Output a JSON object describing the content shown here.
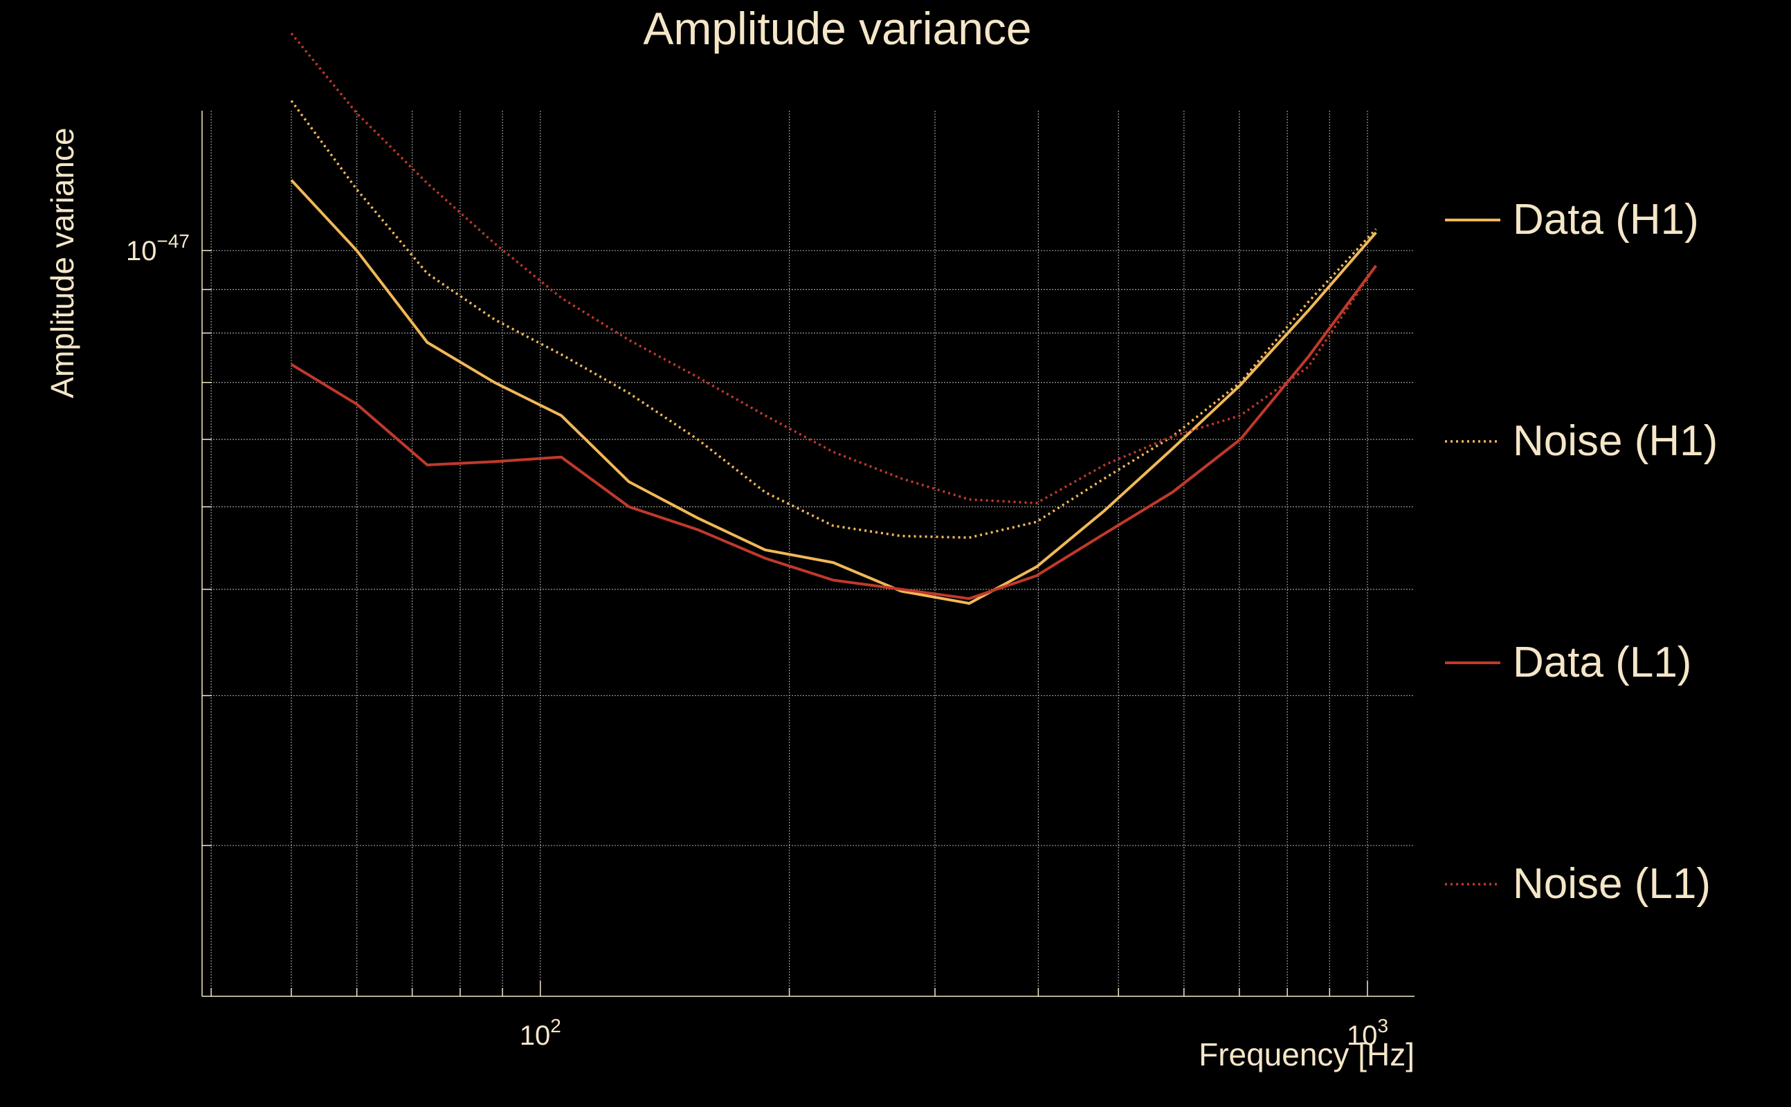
{
  "chart_data": {
    "type": "line",
    "title": "Amplitude variance",
    "xlabel": "Frequency [Hz]",
    "ylabel": "Amplitude variance",
    "x_scale": "log",
    "y_scale": "log",
    "xlim": [
      39,
      1140
    ],
    "ylim": [
      1.33e-48,
      1.46e-47
    ],
    "x_ticks": [
      {
        "value": 100,
        "base": "10",
        "exp": "2"
      },
      {
        "value": 1000,
        "base": "10",
        "exp": "3"
      }
    ],
    "y_ticks": [
      {
        "value": 1e-47,
        "base": "10",
        "exp": "−47"
      }
    ],
    "grid": true,
    "legend_position": "right",
    "colors": {
      "background": "#000000",
      "text": "#f5e6c8",
      "grid": "#9a9a9a",
      "h1": "#f0b858",
      "l1": "#c0392b"
    },
    "x": [
      50,
      60,
      73,
      88,
      106,
      128,
      155,
      187,
      226,
      273,
      330,
      398,
      481,
      581,
      702,
      848,
      1024
    ],
    "series": [
      {
        "name": "Data (H1)",
        "style": "solid",
        "color": "#f0b858",
        "values": [
          1.21e-47,
          1e-47,
          7.8e-48,
          7e-48,
          6.4e-48,
          5.35e-48,
          4.85e-48,
          4.45e-48,
          4.3e-48,
          3.98e-48,
          3.85e-48,
          4.25e-48,
          4.95e-48,
          5.85e-48,
          6.95e-48,
          8.5e-48,
          1.05e-47
        ]
      },
      {
        "name": "Noise (H1)",
        "style": "dotted",
        "color": "#f0b858",
        "values": [
          1.5e-47,
          1.18e-47,
          9.4e-48,
          8.3e-48,
          7.55e-48,
          6.8e-48,
          6e-48,
          5.2e-48,
          4.75e-48,
          4.62e-48,
          4.6e-48,
          4.8e-48,
          5.4e-48,
          6.05e-48,
          7e-48,
          8.7e-48,
          1.06e-47
        ]
      },
      {
        "name": "Data (L1)",
        "style": "solid",
        "color": "#c0392b",
        "values": [
          7.35e-48,
          6.6e-48,
          5.6e-48,
          5.65e-48,
          5.72e-48,
          5e-48,
          4.7e-48,
          4.35e-48,
          4.1e-48,
          4e-48,
          3.9e-48,
          4.15e-48,
          4.65e-48,
          5.2e-48,
          6e-48,
          7.5e-48,
          9.6e-48
        ]
      },
      {
        "name": "Noise (L1)",
        "style": "dotted",
        "color": "#c0392b",
        "values": [
          1.8e-47,
          1.45e-47,
          1.2e-47,
          1.02e-47,
          8.8e-48,
          7.85e-48,
          7.1e-48,
          6.4e-48,
          5.8e-48,
          5.4e-48,
          5.1e-48,
          5.05e-48,
          5.6e-48,
          6.05e-48,
          6.4e-48,
          7.3e-48,
          9.6e-48
        ]
      }
    ]
  }
}
